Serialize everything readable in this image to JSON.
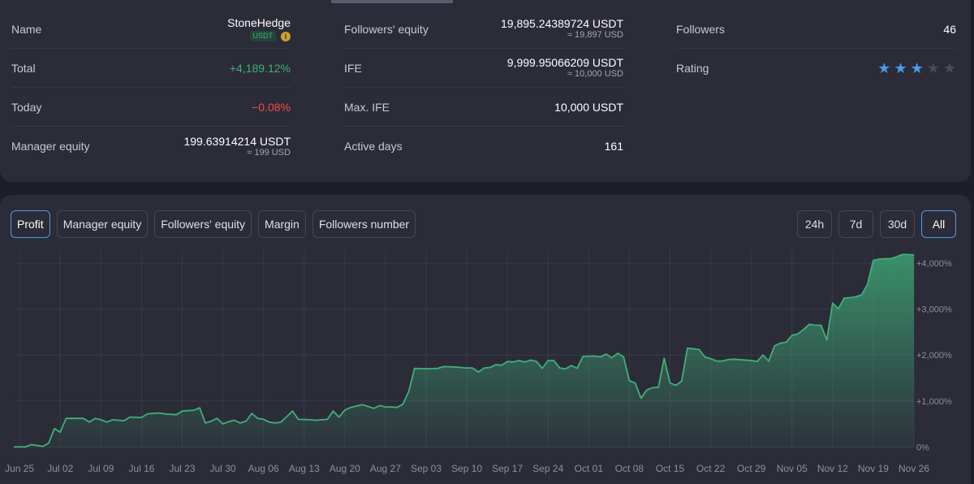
{
  "stats": {
    "name_label": "Name",
    "name_value": "StoneHedge",
    "currency_badge": "USDT",
    "total_label": "Total",
    "total_value": "+4,189.12%",
    "today_label": "Today",
    "today_value": "−0.08%",
    "manager_equity_label": "Manager equity",
    "manager_equity_value": "199.63914214 USDT",
    "manager_equity_usd": "≈ 199 USD",
    "followers_equity_label": "Followers' equity",
    "followers_equity_value": "19,895.24389724 USDT",
    "followers_equity_usd": "≈ 19,897 USD",
    "ife_label": "IFE",
    "ife_value": "9,999.95066209 USDT",
    "ife_usd": "≈ 10,000 USD",
    "max_ife_label": "Max. IFE",
    "max_ife_value": "10,000 USDT",
    "active_days_label": "Active days",
    "active_days_value": "161",
    "followers_label": "Followers",
    "followers_value": "46",
    "rating_label": "Rating",
    "rating": 3,
    "rating_max": 5
  },
  "chart_tabs": [
    "Profit",
    "Manager equity",
    "Followers' equity",
    "Margin",
    "Followers number"
  ],
  "active_tab": "Profit",
  "ranges": [
    "24h",
    "7d",
    "30d",
    "All"
  ],
  "active_range": "All",
  "colors": {
    "accent": "#4a9be8",
    "line": "#3fb07a",
    "negative": "#f04a4a",
    "star": "#4a9be8"
  },
  "chart_data": {
    "type": "area",
    "series_color": "#3fb07a",
    "ylim": [
      -30,
      4250
    ],
    "y_ticks": [
      0,
      1000,
      2000,
      3000,
      4000
    ],
    "y_tick_labels": [
      "0%",
      "+1,000%",
      "+2,000%",
      "+3,000%",
      "+4,000%"
    ],
    "x_ticks": [
      1,
      8,
      15,
      22,
      29,
      36,
      43,
      50,
      57,
      64,
      71,
      78,
      85,
      92,
      99,
      106,
      113,
      120,
      127,
      134,
      141,
      148,
      155
    ],
    "x_tick_labels": [
      "Jun 25",
      "Jul 02",
      "Jul 09",
      "Jul 16",
      "Jul 23",
      "Jul 30",
      "Aug 06",
      "Aug 13",
      "Aug 20",
      "Aug 27",
      "Sep 03",
      "Sep 10",
      "Sep 17",
      "Sep 24",
      "Oct 01",
      "Oct 08",
      "Oct 15",
      "Oct 22",
      "Oct 29",
      "Nov 05",
      "Nov 12",
      "Nov 19",
      "Nov 26"
    ],
    "points": [
      [
        0,
        0
      ],
      [
        2,
        0
      ],
      [
        3,
        50
      ],
      [
        5,
        10
      ],
      [
        6,
        80
      ],
      [
        7,
        400
      ],
      [
        8,
        320
      ],
      [
        9,
        620
      ],
      [
        12,
        620
      ],
      [
        13,
        540
      ],
      [
        14,
        620
      ],
      [
        15,
        590
      ],
      [
        16,
        540
      ],
      [
        17,
        590
      ],
      [
        19,
        570
      ],
      [
        20,
        650
      ],
      [
        22,
        640
      ],
      [
        23,
        720
      ],
      [
        25,
        740
      ],
      [
        26,
        720
      ],
      [
        28,
        700
      ],
      [
        29,
        780
      ],
      [
        31,
        800
      ],
      [
        32,
        850
      ],
      [
        33,
        520
      ],
      [
        34,
        560
      ],
      [
        35,
        620
      ],
      [
        36,
        500
      ],
      [
        37,
        550
      ],
      [
        38,
        580
      ],
      [
        39,
        520
      ],
      [
        40,
        560
      ],
      [
        41,
        730
      ],
      [
        42,
        620
      ],
      [
        43,
        600
      ],
      [
        44,
        540
      ],
      [
        45,
        520
      ],
      [
        46,
        540
      ],
      [
        47,
        660
      ],
      [
        48,
        780
      ],
      [
        49,
        600
      ],
      [
        51,
        590
      ],
      [
        52,
        580
      ],
      [
        54,
        600
      ],
      [
        55,
        780
      ],
      [
        56,
        650
      ],
      [
        57,
        800
      ],
      [
        58,
        860
      ],
      [
        59,
        890
      ],
      [
        60,
        920
      ],
      [
        61,
        880
      ],
      [
        62,
        840
      ],
      [
        63,
        900
      ],
      [
        64,
        870
      ],
      [
        65,
        870
      ],
      [
        66,
        860
      ],
      [
        67,
        930
      ],
      [
        68,
        1200
      ],
      [
        69,
        1710
      ],
      [
        71,
        1700
      ],
      [
        73,
        1710
      ],
      [
        74,
        1750
      ],
      [
        76,
        1740
      ],
      [
        78,
        1720
      ],
      [
        79,
        1720
      ],
      [
        80,
        1630
      ],
      [
        81,
        1720
      ],
      [
        82,
        1730
      ],
      [
        83,
        1790
      ],
      [
        84,
        1780
      ],
      [
        85,
        1860
      ],
      [
        86,
        1850
      ],
      [
        87,
        1880
      ],
      [
        88,
        1850
      ],
      [
        89,
        1890
      ],
      [
        90,
        1860
      ],
      [
        91,
        1710
      ],
      [
        92,
        1880
      ],
      [
        93,
        1880
      ],
      [
        94,
        1720
      ],
      [
        95,
        1700
      ],
      [
        96,
        1770
      ],
      [
        97,
        1710
      ],
      [
        98,
        1970
      ],
      [
        100,
        1980
      ],
      [
        101,
        1960
      ],
      [
        102,
        2020
      ],
      [
        103,
        1940
      ],
      [
        104,
        2040
      ],
      [
        105,
        1960
      ],
      [
        106,
        1440
      ],
      [
        107,
        1390
      ],
      [
        108,
        1060
      ],
      [
        109,
        1240
      ],
      [
        110,
        1290
      ],
      [
        111,
        1300
      ],
      [
        112,
        1930
      ],
      [
        113,
        1390
      ],
      [
        114,
        1340
      ],
      [
        115,
        1430
      ],
      [
        116,
        2150
      ],
      [
        118,
        2120
      ],
      [
        119,
        1960
      ],
      [
        120,
        1920
      ],
      [
        121,
        1870
      ],
      [
        122,
        1870
      ],
      [
        123,
        1900
      ],
      [
        124,
        1910
      ],
      [
        126,
        1890
      ],
      [
        127,
        1880
      ],
      [
        128,
        1860
      ],
      [
        129,
        2000
      ],
      [
        130,
        1870
      ],
      [
        131,
        2200
      ],
      [
        132,
        2260
      ],
      [
        133,
        2280
      ],
      [
        134,
        2430
      ],
      [
        135,
        2460
      ],
      [
        136,
        2560
      ],
      [
        137,
        2670
      ],
      [
        138,
        2650
      ],
      [
        139,
        2650
      ],
      [
        140,
        2330
      ],
      [
        141,
        3130
      ],
      [
        142,
        3010
      ],
      [
        143,
        3240
      ],
      [
        144,
        3250
      ],
      [
        145,
        3270
      ],
      [
        146,
        3310
      ],
      [
        147,
        3540
      ],
      [
        148,
        4060
      ],
      [
        149,
        4090
      ],
      [
        150,
        4100
      ],
      [
        151,
        4100
      ],
      [
        152,
        4140
      ],
      [
        153,
        4190
      ],
      [
        154,
        4190
      ],
      [
        155,
        4180
      ]
    ]
  }
}
